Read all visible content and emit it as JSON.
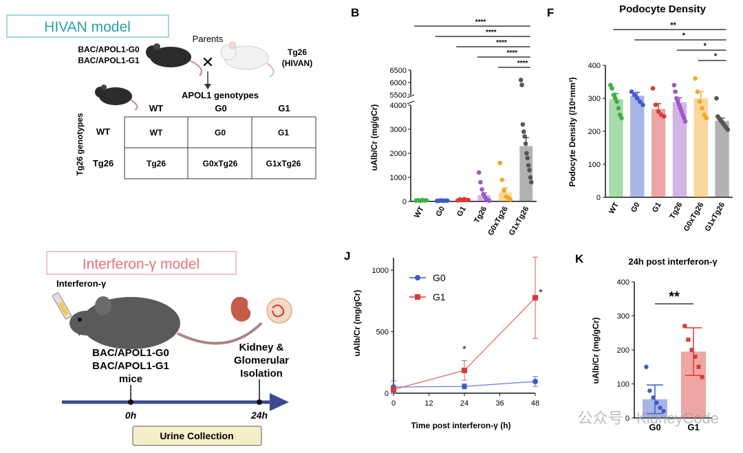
{
  "hivan": {
    "title": "HIVAN model",
    "parents_label": "Parents",
    "left_mouse_line1": "BAC/APOL1-G0",
    "left_mouse_line2": "BAC/APOL1-G1",
    "right_mouse_line1": "Tg26",
    "right_mouse_line2": "(HIVAN)",
    "cross_symbol": "✕",
    "genotypes_label": "APOL1 genotypes",
    "side_label": "Tg26 genotypes",
    "col_headers": [
      "WT",
      "G0",
      "G1"
    ],
    "row_headers": [
      "WT",
      "Tg26"
    ],
    "cells": [
      [
        "WT",
        "G0",
        "G1"
      ],
      [
        "Tg26",
        "G0xTg26",
        "G1xTg26"
      ]
    ]
  },
  "ifn": {
    "title": "Interferon-γ model",
    "injection_label": "Interferon-γ",
    "mouse_line1": "BAC/APOL1-G0",
    "mouse_line2": "BAC/APOL1-G1",
    "mouse_line3": "mice",
    "kidney_line1": "Kidney &",
    "kidney_line2": "Glomerular",
    "kidney_line3": "Isolation",
    "t0": "0h",
    "t24": "24h",
    "urine_label": "Urine Collection"
  },
  "watermark": "公众号 · KidneyCode",
  "colors": {
    "WT": "#3cb043",
    "G0": "#3d5bc9",
    "G1": "#d93a35",
    "Tg26": "#9b59c6",
    "G0xTg26": "#f5a623",
    "G1xTg26": "#555555",
    "hivan_title": "#2a9fa8",
    "ifn_title": "#e8737a",
    "arrow": "#3b4a8f",
    "urine_box": "#f6eec6"
  },
  "chart_data": [
    {
      "panel": "B",
      "type": "bar",
      "ylabel": "uAlb/Cr (mg/gCr)",
      "categories": [
        "WT",
        "G0",
        "G1",
        "Tg26",
        "G0xTg26",
        "G1xTg26"
      ],
      "values": [
        40,
        30,
        60,
        260,
        380,
        2300
      ],
      "sem": [
        10,
        10,
        20,
        100,
        180,
        350
      ],
      "points": [
        [
          30,
          50,
          20,
          60,
          40,
          45
        ],
        [
          20,
          30,
          40,
          25,
          35,
          30
        ],
        [
          40,
          80,
          50,
          90,
          60,
          55
        ],
        [
          1200,
          800,
          500,
          300,
          200,
          100,
          50,
          30
        ],
        [
          1600,
          900,
          450,
          200,
          150,
          80
        ],
        [
          6100,
          5900,
          3200,
          2900,
          2700,
          2400,
          2000,
          1800,
          1500,
          1300,
          1000,
          800
        ]
      ],
      "ylim_lower": [
        0,
        4000
      ],
      "ylim_upper": [
        5500,
        6500
      ],
      "yticks_lower": [
        0,
        1000,
        2000,
        3000,
        4000
      ],
      "yticks_upper": [
        5500,
        6000,
        6500
      ],
      "significance": [
        {
          "from": "WT",
          "to": "G1xTg26",
          "label": "****"
        },
        {
          "from": "G0",
          "to": "G1xTg26",
          "label": "****"
        },
        {
          "from": "G1",
          "to": "G1xTg26",
          "label": "****"
        },
        {
          "from": "Tg26",
          "to": "G1xTg26",
          "label": "****"
        },
        {
          "from": "G0xTg26",
          "to": "G1xTg26",
          "label": "****"
        }
      ]
    },
    {
      "panel": "F",
      "type": "bar",
      "title": "Podocyte Density",
      "ylabel": "Podocyte Density (/10⁶mm³)",
      "categories": [
        "WT",
        "G0",
        "G1",
        "Tg26",
        "G0xTg26",
        "G1xTg26"
      ],
      "values": [
        297,
        308,
        268,
        288,
        300,
        232
      ],
      "sem": [
        18,
        10,
        16,
        14,
        20,
        8
      ],
      "points": [
        [
          340,
          330,
          310,
          300,
          290,
          270,
          250,
          240
        ],
        [
          320,
          310,
          300,
          290,
          280
        ],
        [
          330,
          280,
          260,
          250,
          245
        ],
        [
          340,
          320,
          300,
          290,
          280,
          270,
          260,
          250,
          240,
          230
        ],
        [
          360,
          320,
          290,
          270,
          250,
          240
        ],
        [
          300,
          245,
          240,
          235,
          230,
          225,
          220,
          215,
          210,
          205
        ]
      ],
      "ylim": [
        0,
        400
      ],
      "yticks": [
        0,
        100,
        200,
        300,
        400
      ],
      "significance": [
        {
          "from": "WT",
          "to": "G1xTg26",
          "label": "**"
        },
        {
          "from": "G0",
          "to": "G1xTg26",
          "label": "*"
        },
        {
          "from": "Tg26",
          "to": "G1xTg26",
          "label": "*"
        },
        {
          "from": "G0xTg26",
          "to": "G1xTg26",
          "label": "*"
        }
      ]
    },
    {
      "panel": "J",
      "type": "line",
      "xlabel": "Time post interferon-γ (h)",
      "ylabel": "uAlb/Cr (mg/gCr)",
      "x": [
        0,
        24,
        48
      ],
      "xticks": [
        0,
        12,
        24,
        36,
        48
      ],
      "yticks": [
        0,
        500,
        1000
      ],
      "xlim": [
        0,
        48
      ],
      "ylim": [
        0,
        1100
      ],
      "legend": "top-left",
      "series": [
        {
          "name": "G0",
          "values": [
            50,
            55,
            95
          ],
          "err": [
            50,
            20,
            40
          ],
          "marker": "circle"
        },
        {
          "name": "G1",
          "values": [
            30,
            185,
            775
          ],
          "err": [
            20,
            80,
            330
          ],
          "marker": "square"
        }
      ],
      "annotations": [
        {
          "x": 24,
          "label": "*"
        },
        {
          "x": 48,
          "label": "*"
        }
      ]
    },
    {
      "panel": "K",
      "type": "bar",
      "title": "24h post interferon-γ",
      "ylabel": "uAlb/Cr (mg/gCr)",
      "categories": [
        "G0",
        "G1"
      ],
      "values": [
        55,
        195
      ],
      "sem": [
        42,
        70
      ],
      "points": [
        [
          150,
          80,
          60,
          45,
          30,
          20
        ],
        [
          270,
          230,
          200,
          180,
          150,
          120
        ]
      ],
      "ylim": [
        0,
        400
      ],
      "yticks": [
        0,
        100,
        200,
        300,
        400
      ],
      "significance": [
        {
          "from": "G0",
          "to": "G1",
          "label": "**"
        }
      ]
    }
  ]
}
